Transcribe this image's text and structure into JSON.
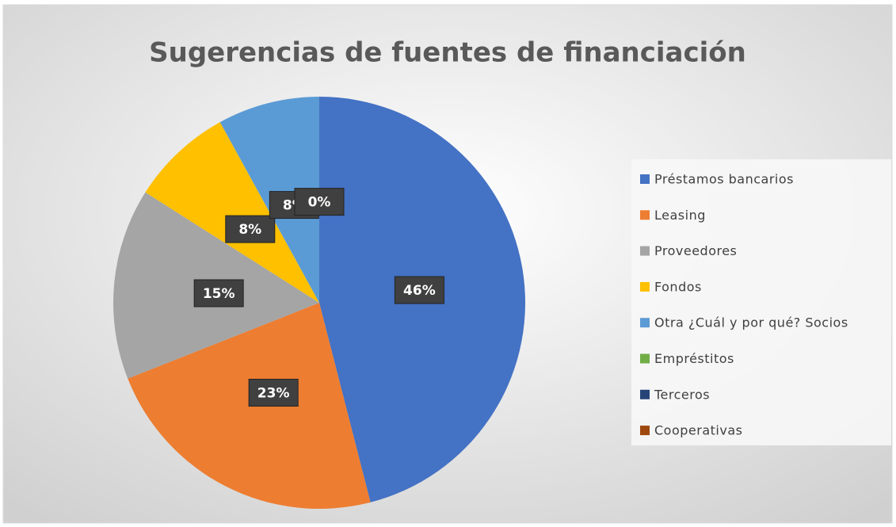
{
  "chart_data": {
    "type": "pie",
    "title": "Sugerencias de fuentes de financiación",
    "categories": [
      "Préstamos bancarios",
      "Leasing",
      "Proveedores",
      "Fondos",
      "Otra ¿Cuál y por qué? Socios",
      "Empréstitos",
      "Terceros",
      "Cooperativas"
    ],
    "values": [
      46,
      23,
      15,
      8,
      8,
      0,
      0,
      0
    ],
    "value_labels": [
      "46%",
      "23%",
      "15%",
      "8%",
      "8%",
      "0%",
      null,
      null
    ],
    "colors": [
      "#4472c4",
      "#ed7d31",
      "#a5a5a5",
      "#ffc000",
      "#5b9bd5",
      "#70ad47",
      "#264478",
      "#9e480e"
    ],
    "legend": "right"
  }
}
